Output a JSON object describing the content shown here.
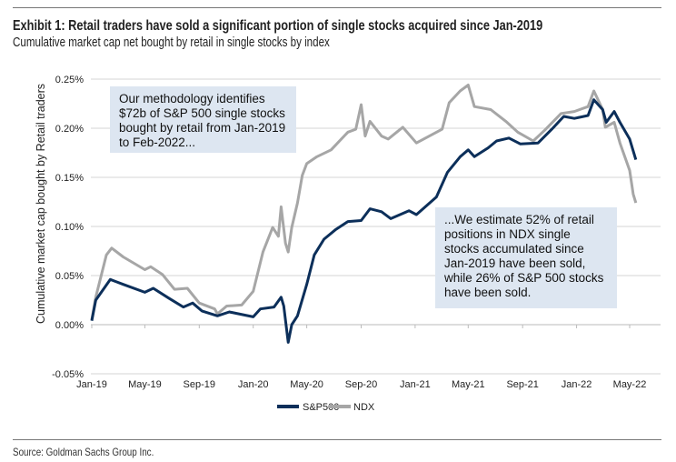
{
  "title": "Exhibit 1: Retail traders have sold a significant portion of single stocks acquired since Jan-2019",
  "subtitle": "Cumulative market cap net bought by retail in single stocks by index",
  "source": "Source: Goldman Sachs Group Inc.",
  "annotations": [
    "Our methodology identifies $72b of S&P 500 single stocks bought by retail from Jan-2019 to Feb-2022...",
    "...We estimate 52% of retail positions in NDX single stocks accumulated since Jan-2019 have been sold, while 26% of S&P 500 stocks have been sold."
  ],
  "chart_data": {
    "type": "line",
    "title": "Exhibit 1: Retail traders have sold a significant portion of single stocks acquired since Jan-2019",
    "subtitle": "Cumulative market cap net bought by retail in single stocks by index",
    "xlabel": "",
    "ylabel": "Cumulative market cap bought by Retail traders",
    "x_ticks": [
      "Jan-19",
      "May-19",
      "Sep-19",
      "Jan-20",
      "May-20",
      "Sep-20",
      "Jan-21",
      "May-21",
      "Sep-21",
      "Jan-22",
      "May-22"
    ],
    "y_ticks": [
      "-0.05%",
      "0.00%",
      "0.05%",
      "0.10%",
      "0.15%",
      "0.20%",
      "0.25%"
    ],
    "ylim": [
      -0.05,
      0.25
    ],
    "y_unit": "%",
    "grid": "horizontal",
    "legend": "bottom",
    "series": [
      {
        "name": "S&P500",
        "color": "#0c2f5a",
        "points": [
          [
            "2019-01-01",
            0.004
          ],
          [
            "2019-01-10",
            0.025
          ],
          [
            "2019-02-12",
            0.046
          ],
          [
            "2019-03-13",
            0.041
          ],
          [
            "2019-05-01",
            0.033
          ],
          [
            "2019-05-20",
            0.037
          ],
          [
            "2019-06-24",
            0.027
          ],
          [
            "2019-07-27",
            0.018
          ],
          [
            "2019-08-17",
            0.022
          ],
          [
            "2019-09-07",
            0.014
          ],
          [
            "2019-10-12",
            0.009
          ],
          [
            "2019-11-08",
            0.013
          ],
          [
            "2020-01-01",
            0.008
          ],
          [
            "2020-01-17",
            0.016
          ],
          [
            "2020-02-17",
            0.018
          ],
          [
            "2020-03-04",
            0.028
          ],
          [
            "2020-03-10",
            0.019
          ],
          [
            "2020-03-20",
            -0.018
          ],
          [
            "2020-03-28",
            0.0
          ],
          [
            "2020-04-10",
            0.009
          ],
          [
            "2020-05-01",
            0.041
          ],
          [
            "2020-05-18",
            0.071
          ],
          [
            "2020-06-09",
            0.087
          ],
          [
            "2020-07-06",
            0.097
          ],
          [
            "2020-08-02",
            0.105
          ],
          [
            "2020-09-01",
            0.106
          ],
          [
            "2020-09-21",
            0.118
          ],
          [
            "2020-10-17",
            0.115
          ],
          [
            "2020-11-07",
            0.108
          ],
          [
            "2020-12-18",
            0.116
          ],
          [
            "2021-01-04",
            0.112
          ],
          [
            "2021-02-18",
            0.13
          ],
          [
            "2021-03-15",
            0.155
          ],
          [
            "2021-04-13",
            0.171
          ],
          [
            "2021-05-01",
            0.178
          ],
          [
            "2021-05-15",
            0.171
          ],
          [
            "2021-06-15",
            0.18
          ],
          [
            "2021-07-04",
            0.187
          ],
          [
            "2021-08-01",
            0.19
          ],
          [
            "2021-08-27",
            0.184
          ],
          [
            "2021-10-06",
            0.185
          ],
          [
            "2021-11-06",
            0.199
          ],
          [
            "2021-12-03",
            0.212
          ],
          [
            "2021-12-27",
            0.21
          ],
          [
            "2022-01-27",
            0.213
          ],
          [
            "2022-02-09",
            0.229
          ],
          [
            "2022-03-01",
            0.219
          ],
          [
            "2022-03-09",
            0.206
          ],
          [
            "2022-03-27",
            0.217
          ],
          [
            "2022-04-09",
            0.206
          ],
          [
            "2022-05-01",
            0.189
          ],
          [
            "2022-05-15",
            0.168
          ]
        ]
      },
      {
        "name": "NDX",
        "color": "#a6a6a6",
        "points": [
          [
            "2019-01-01",
            0.005
          ],
          [
            "2019-01-10",
            0.028
          ],
          [
            "2019-02-03",
            0.071
          ],
          [
            "2019-02-15",
            0.078
          ],
          [
            "2019-03-13",
            0.069
          ],
          [
            "2019-05-01",
            0.056
          ],
          [
            "2019-05-14",
            0.059
          ],
          [
            "2019-06-10",
            0.051
          ],
          [
            "2019-07-07",
            0.036
          ],
          [
            "2019-08-05",
            0.037
          ],
          [
            "2019-09-01",
            0.022
          ],
          [
            "2019-10-06",
            0.016
          ],
          [
            "2019-10-12",
            0.011
          ],
          [
            "2019-11-02",
            0.019
          ],
          [
            "2019-12-06",
            0.02
          ],
          [
            "2020-01-01",
            0.034
          ],
          [
            "2020-01-23",
            0.074
          ],
          [
            "2020-02-14",
            0.099
          ],
          [
            "2020-02-27",
            0.09
          ],
          [
            "2020-03-04",
            0.12
          ],
          [
            "2020-03-14",
            0.083
          ],
          [
            "2020-03-20",
            0.074
          ],
          [
            "2020-03-28",
            0.099
          ],
          [
            "2020-04-10",
            0.124
          ],
          [
            "2020-04-21",
            0.152
          ],
          [
            "2020-05-01",
            0.164
          ],
          [
            "2020-05-24",
            0.171
          ],
          [
            "2020-06-25",
            0.178
          ],
          [
            "2020-08-02",
            0.196
          ],
          [
            "2020-08-20",
            0.199
          ],
          [
            "2020-09-01",
            0.224
          ],
          [
            "2020-09-10",
            0.192
          ],
          [
            "2020-09-21",
            0.207
          ],
          [
            "2020-10-17",
            0.192
          ],
          [
            "2020-11-01",
            0.189
          ],
          [
            "2020-12-04",
            0.201
          ],
          [
            "2021-01-04",
            0.185
          ],
          [
            "2021-03-03",
            0.199
          ],
          [
            "2021-03-19",
            0.226
          ],
          [
            "2021-04-13",
            0.238
          ],
          [
            "2021-05-01",
            0.244
          ],
          [
            "2021-05-15",
            0.222
          ],
          [
            "2021-06-21",
            0.219
          ],
          [
            "2021-07-25",
            0.207
          ],
          [
            "2021-08-21",
            0.196
          ],
          [
            "2021-09-25",
            0.187
          ],
          [
            "2021-10-21",
            0.198
          ],
          [
            "2021-11-27",
            0.215
          ],
          [
            "2021-12-27",
            0.217
          ],
          [
            "2022-01-27",
            0.222
          ],
          [
            "2022-02-09",
            0.238
          ],
          [
            "2022-03-01",
            0.219
          ],
          [
            "2022-03-07",
            0.201
          ],
          [
            "2022-03-27",
            0.206
          ],
          [
            "2022-04-09",
            0.185
          ],
          [
            "2022-05-01",
            0.157
          ],
          [
            "2022-05-09",
            0.133
          ],
          [
            "2022-05-15",
            0.124
          ]
        ]
      }
    ]
  }
}
